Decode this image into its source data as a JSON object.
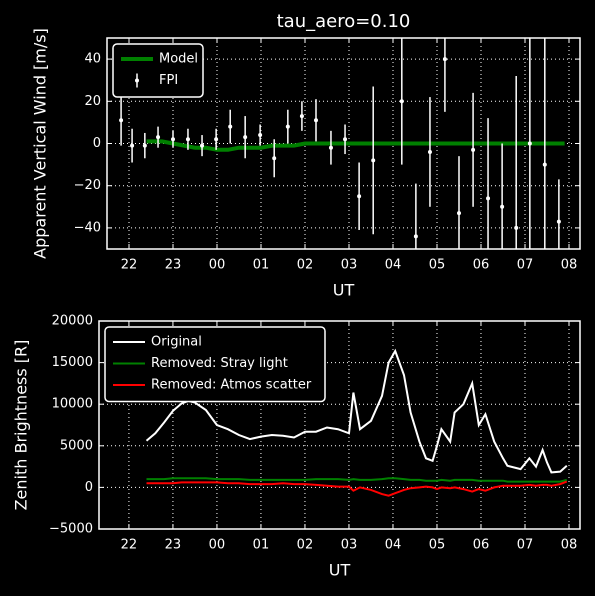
{
  "chart_data": [
    {
      "type": "line",
      "title": "tau_aero=0.10",
      "xlabel": "UT",
      "ylabel": "Apparent Vertical Wind [m/s]",
      "xlim": [
        21.5,
        32.25
      ],
      "ylim": [
        -50,
        50
      ],
      "xticks": [
        22,
        23,
        {
          "value": 24,
          "label": "00"
        },
        {
          "value": 25,
          "label": "01"
        },
        {
          "value": 26,
          "label": "02"
        },
        {
          "value": 27,
          "label": "03"
        },
        {
          "value": 28,
          "label": "04"
        },
        {
          "value": 29,
          "label": "05"
        },
        {
          "value": 30,
          "label": "06"
        },
        {
          "value": 31,
          "label": "07"
        },
        {
          "value": 32,
          "label": "08"
        }
      ],
      "yticks": [
        {
          "value": -40,
          "label": "−40"
        },
        {
          "value": -20,
          "label": "−20"
        },
        0,
        20,
        40
      ],
      "grid": true,
      "legend": "upper left",
      "series": [
        {
          "name": "Model",
          "type": "line",
          "color": "#008000",
          "width": 4,
          "x": [
            22.4,
            22.75,
            23.0,
            23.25,
            23.5,
            23.75,
            24.0,
            24.25,
            24.5,
            24.75,
            25.0,
            25.25,
            25.5,
            25.75,
            26.0,
            26.5,
            27.0,
            27.5,
            28.0,
            28.5,
            29.0,
            29.5,
            30.0,
            30.5,
            31.0,
            31.5,
            31.9
          ],
          "values": [
            1,
            1,
            0,
            -1,
            -2,
            -2,
            -3,
            -3,
            -2,
            -2,
            -2,
            -1,
            -1,
            -1,
            0,
            0,
            0,
            0,
            0,
            0,
            0,
            0,
            0,
            0,
            0,
            0,
            0
          ]
        },
        {
          "name": "FPI",
          "type": "errorbar",
          "color": "#ffffff",
          "x": [
            21.82,
            22.07,
            22.36,
            22.66,
            23.0,
            23.34,
            23.66,
            23.98,
            24.3,
            24.64,
            24.98,
            25.3,
            25.61,
            25.93,
            26.25,
            26.59,
            26.91,
            27.23,
            27.55,
            28.2,
            28.52,
            28.84,
            29.18,
            29.5,
            29.82,
            30.16,
            30.48,
            30.8,
            31.11,
            31.45,
            31.77
          ],
          "values": [
            11,
            -1,
            -1,
            3,
            2,
            2,
            -1,
            2,
            8,
            3,
            4,
            -7,
            8,
            13,
            11,
            -2,
            2,
            -25,
            -8,
            20,
            -44,
            -4,
            40,
            -33,
            -3,
            -26,
            -30,
            -40,
            0,
            -10,
            -37
          ],
          "errors": [
            12,
            8,
            6,
            5,
            4,
            5,
            5,
            5,
            8,
            10,
            5,
            9,
            8,
            7,
            10,
            8,
            7,
            16,
            35,
            30,
            25,
            26,
            25,
            27,
            27,
            38,
            30,
            72,
            60,
            60,
            20
          ]
        }
      ]
    },
    {
      "type": "line",
      "xlabel": "UT",
      "ylabel": "Zenith Brightness [R]",
      "xlim": [
        21.32,
        32.25
      ],
      "ylim": [
        -5000,
        20000
      ],
      "xticks": [
        22,
        23,
        {
          "value": 24,
          "label": "00"
        },
        {
          "value": 25,
          "label": "01"
        },
        {
          "value": 26,
          "label": "02"
        },
        {
          "value": 27,
          "label": "03"
        },
        {
          "value": 28,
          "label": "04"
        },
        {
          "value": 29,
          "label": "05"
        },
        {
          "value": 30,
          "label": "06"
        },
        {
          "value": 31,
          "label": "07"
        },
        {
          "value": 32,
          "label": "08"
        }
      ],
      "yticks": [
        {
          "value": -5000,
          "label": "−5000"
        },
        0,
        5000,
        10000,
        15000,
        20000
      ],
      "grid": true,
      "legend": "upper left",
      "x": [
        22.4,
        22.6,
        22.8,
        23.0,
        23.2,
        23.35,
        23.5,
        23.75,
        24.0,
        24.25,
        24.5,
        24.75,
        25.0,
        25.25,
        25.5,
        25.75,
        26.0,
        26.25,
        26.5,
        26.75,
        27.0,
        27.1,
        27.25,
        27.5,
        27.75,
        27.9,
        28.05,
        28.25,
        28.4,
        28.6,
        28.75,
        28.9,
        29.0,
        29.1,
        29.3,
        29.4,
        29.6,
        29.8,
        29.95,
        30.1,
        30.3,
        30.5,
        30.6,
        30.9,
        31.1,
        31.25,
        31.4,
        31.5,
        31.6,
        31.8,
        31.95
      ],
      "series": [
        {
          "name": "Original",
          "type": "line",
          "color": "#ffffff",
          "width": 2,
          "values": [
            5600,
            6500,
            7800,
            9200,
            10100,
            10400,
            10200,
            9300,
            7500,
            7000,
            6300,
            5800,
            6100,
            6300,
            6200,
            6000,
            6700,
            6700,
            7200,
            7000,
            6500,
            11400,
            7000,
            8000,
            11000,
            15000,
            16400,
            13500,
            9000,
            5500,
            3500,
            3200,
            5000,
            7000,
            5500,
            9000,
            10000,
            12500,
            7500,
            8800,
            5500,
            3500,
            2600,
            2200,
            3500,
            2500,
            4500,
            3000,
            1800,
            1900,
            2600
          ]
        },
        {
          "name": "Removed: Stray light",
          "type": "line",
          "color": "#008000",
          "width": 2,
          "values": [
            1000,
            1000,
            1000,
            1100,
            1100,
            1100,
            1100,
            1100,
            1000,
            1000,
            1000,
            900,
            900,
            900,
            900,
            900,
            900,
            1000,
            1000,
            1000,
            900,
            1000,
            900,
            900,
            1000,
            1100,
            1100,
            1000,
            900,
            900,
            800,
            800,
            800,
            900,
            800,
            900,
            900,
            900,
            800,
            800,
            800,
            800,
            700,
            700,
            700,
            700,
            700,
            700,
            700,
            700,
            900
          ]
        },
        {
          "name": "Removed: Atmos scatter",
          "type": "line",
          "color": "#ff0000",
          "width": 2,
          "values": [
            500,
            500,
            500,
            500,
            600,
            600,
            600,
            600,
            600,
            500,
            500,
            400,
            400,
            400,
            500,
            400,
            400,
            300,
            200,
            100,
            100,
            -400,
            0,
            -300,
            -800,
            -1000,
            -700,
            -300,
            -100,
            0,
            100,
            0,
            -200,
            0,
            -100,
            0,
            -200,
            -500,
            -200,
            -400,
            0,
            200,
            200,
            200,
            300,
            200,
            300,
            300,
            200,
            400,
            700
          ]
        }
      ]
    }
  ]
}
